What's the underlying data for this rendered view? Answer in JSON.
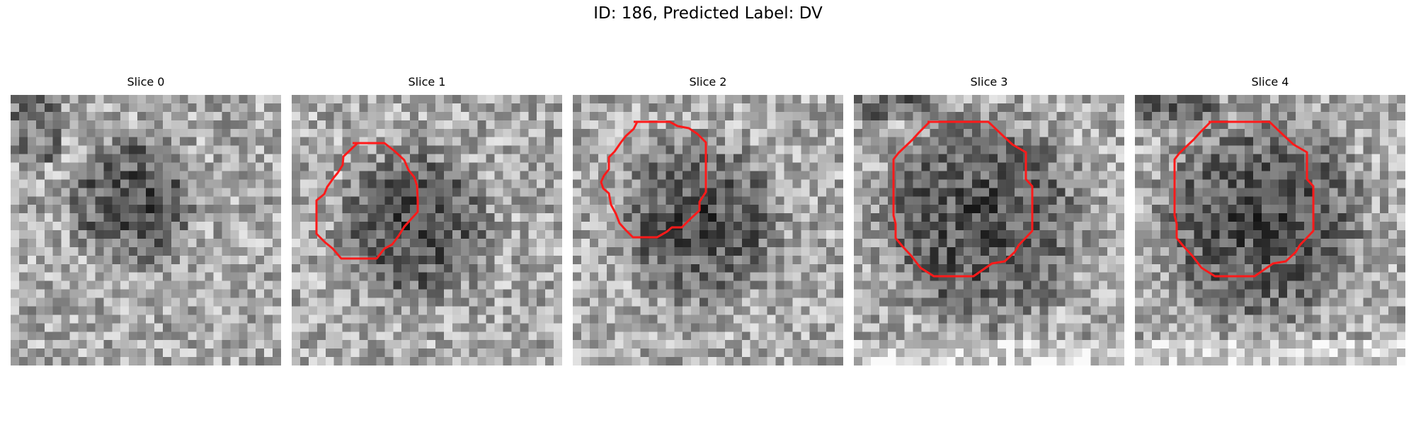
{
  "figure": {
    "title": "ID: 186, Predicted Label: DV"
  },
  "panels": [
    {
      "title": "Slice 0",
      "has_contour": false,
      "seed": 11
    },
    {
      "title": "Slice 1",
      "has_contour": true,
      "seed": 23
    },
    {
      "title": "Slice 2",
      "has_contour": true,
      "seed": 37
    },
    {
      "title": "Slice 3",
      "has_contour": true,
      "seed": 41
    },
    {
      "title": "Slice 4",
      "has_contour": true,
      "seed": 53
    }
  ],
  "colors": {
    "contour": "#ff1a1a",
    "background": "#ffffff"
  },
  "image": {
    "colormap": "gray",
    "grid": [
      32,
      32
    ]
  }
}
